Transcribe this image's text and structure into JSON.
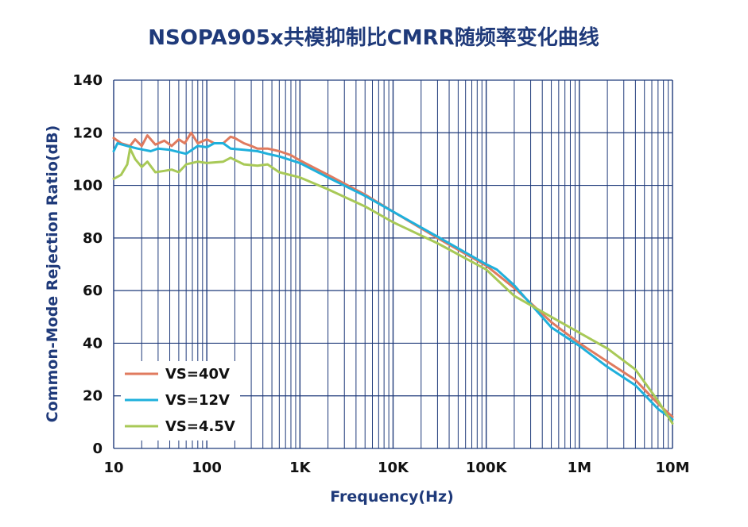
{
  "chart_data": {
    "type": "line",
    "title": "NSOPA905x共模抑制比CMRR随频率变化曲线",
    "xlabel": "Frequency(Hz)",
    "ylabel": "Common-Mode Rejection Ratio(dB)",
    "x_scale": "log",
    "xlim": [
      10,
      10000000
    ],
    "ylim": [
      0,
      140
    ],
    "x_ticks": [
      10,
      100,
      1000,
      10000,
      100000,
      1000000,
      10000000
    ],
    "x_tick_labels": [
      "10",
      "100",
      "1K",
      "10K",
      "100K",
      "1M",
      "10M"
    ],
    "y_ticks": [
      0,
      20,
      40,
      60,
      80,
      100,
      120,
      140
    ],
    "y_tick_labels": [
      "0",
      "20",
      "40",
      "60",
      "80",
      "100",
      "120",
      "140"
    ],
    "grid": true,
    "legend_position": "bottom-left",
    "series": [
      {
        "name": "VS=40V",
        "color": "#e07b5f",
        "points": [
          [
            10,
            118
          ],
          [
            12,
            116
          ],
          [
            15,
            115
          ],
          [
            17,
            117.5
          ],
          [
            20,
            115
          ],
          [
            23,
            119
          ],
          [
            28,
            115.5
          ],
          [
            35,
            117
          ],
          [
            42,
            115
          ],
          [
            50,
            117.5
          ],
          [
            58,
            116
          ],
          [
            68,
            120
          ],
          [
            80,
            116
          ],
          [
            100,
            117.5
          ],
          [
            120,
            116
          ],
          [
            150,
            116
          ],
          [
            180,
            118.5
          ],
          [
            200,
            118
          ],
          [
            250,
            116
          ],
          [
            300,
            115
          ],
          [
            350,
            114
          ],
          [
            450,
            114
          ],
          [
            600,
            113
          ],
          [
            800,
            111.5
          ],
          [
            1000,
            109.5
          ],
          [
            2000,
            104
          ],
          [
            5000,
            96.5
          ],
          [
            10000,
            90
          ],
          [
            30000,
            80
          ],
          [
            100000,
            69.5
          ],
          [
            200000,
            61
          ],
          [
            500000,
            48
          ],
          [
            1000000,
            40
          ],
          [
            2000000,
            33
          ],
          [
            4000000,
            26
          ],
          [
            7000000,
            17
          ],
          [
            10000000,
            12
          ]
        ]
      },
      {
        "name": "VS=12V",
        "color": "#1fb0dc",
        "points": [
          [
            10,
            113
          ],
          [
            11,
            116
          ],
          [
            14,
            115
          ],
          [
            18,
            114
          ],
          [
            25,
            113
          ],
          [
            30,
            114
          ],
          [
            40,
            113.5
          ],
          [
            60,
            112
          ],
          [
            80,
            115
          ],
          [
            100,
            114.5
          ],
          [
            120,
            116
          ],
          [
            150,
            116
          ],
          [
            180,
            114
          ],
          [
            250,
            113.5
          ],
          [
            350,
            113
          ],
          [
            450,
            112
          ],
          [
            600,
            111
          ],
          [
            1000,
            108.5
          ],
          [
            2000,
            103
          ],
          [
            5000,
            96
          ],
          [
            10000,
            90
          ],
          [
            30000,
            80.5
          ],
          [
            100000,
            70
          ],
          [
            130000,
            68
          ],
          [
            200000,
            62
          ],
          [
            500000,
            46
          ],
          [
            1000000,
            39
          ],
          [
            2000000,
            31
          ],
          [
            4000000,
            24
          ],
          [
            7000000,
            15
          ],
          [
            10000000,
            11
          ]
        ]
      },
      {
        "name": "VS=4.5V",
        "color": "#a8c957",
        "points": [
          [
            10,
            102.5
          ],
          [
            12,
            104
          ],
          [
            14,
            108
          ],
          [
            15,
            114
          ],
          [
            17,
            110
          ],
          [
            20,
            107
          ],
          [
            23,
            109
          ],
          [
            28,
            105
          ],
          [
            35,
            105.5
          ],
          [
            42,
            106
          ],
          [
            50,
            105
          ],
          [
            60,
            108
          ],
          [
            80,
            109
          ],
          [
            100,
            108.5
          ],
          [
            150,
            109
          ],
          [
            180,
            110.5
          ],
          [
            250,
            108
          ],
          [
            350,
            107.5
          ],
          [
            450,
            108
          ],
          [
            600,
            105
          ],
          [
            1000,
            103
          ],
          [
            2000,
            98.5
          ],
          [
            5000,
            92
          ],
          [
            10000,
            86
          ],
          [
            30000,
            78
          ],
          [
            100000,
            68
          ],
          [
            200000,
            58
          ],
          [
            500000,
            50
          ],
          [
            1000000,
            44
          ],
          [
            2000000,
            38
          ],
          [
            4000000,
            30
          ],
          [
            7000000,
            18
          ],
          [
            10000000,
            9.5
          ]
        ]
      }
    ]
  }
}
